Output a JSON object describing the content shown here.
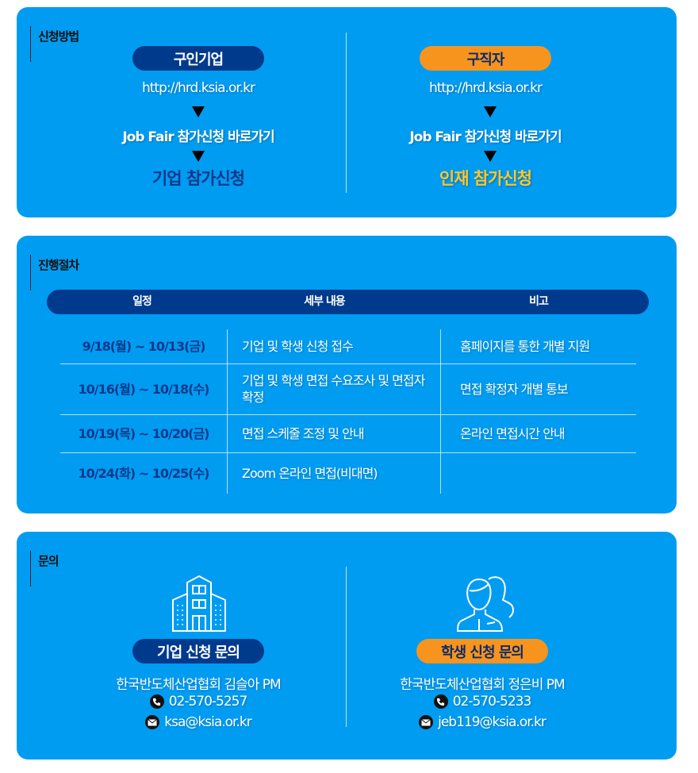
{
  "colors": {
    "panel": "#009cf1",
    "navy": "#003a8c",
    "orange": "#f7941d"
  },
  "apply": {
    "label": "신청방법",
    "company": {
      "badge": "구인기업",
      "url": "http://hrd.ksia.or.kr",
      "link": "Job Fair 참가신청 바로가기",
      "final": "기업 참가신청"
    },
    "seeker": {
      "badge": "구직자",
      "url": "http://hrd.ksia.or.kr",
      "link": "Job Fair 참가신청 바로가기",
      "final": "인재 참가신청"
    }
  },
  "process": {
    "label": "진행절차",
    "headers": [
      "일정",
      "세부 내용",
      "비고"
    ],
    "rows": [
      {
        "date": "9/18(월) ~ 10/13(금)",
        "content": "기업 및 학생 신청 접수",
        "note": "홈페이지를 통한 개별 지원"
      },
      {
        "date": "10/16(월) ~ 10/18(수)",
        "content": "기업 및 학생 면접 수요조사 및 면접자 확정",
        "note": "면접 확정자 개별 통보"
      },
      {
        "date": "10/19(목) ~ 10/20(금)",
        "content": "면접 스케줄 조정 및 안내",
        "note": "온라인 면접시간 안내"
      },
      {
        "date": "10/24(화) ~ 10/25(수)",
        "content": "Zoom 온라인 면접(비대면)",
        "note": ""
      }
    ]
  },
  "inquiry": {
    "label": "문의",
    "company": {
      "icon": "building-icon",
      "badge": "기업 신청 문의",
      "contact": "한국반도체산업협회 김슬아 PM",
      "phone": "02-570-5257",
      "email": "ksa@ksia.or.kr"
    },
    "student": {
      "icon": "people-icon",
      "badge": "학생 신청 문의",
      "contact": "한국반도체산업협회 정은비 PM",
      "phone": "02-570-5233",
      "email": "jeb119@ksia.or.kr"
    }
  }
}
